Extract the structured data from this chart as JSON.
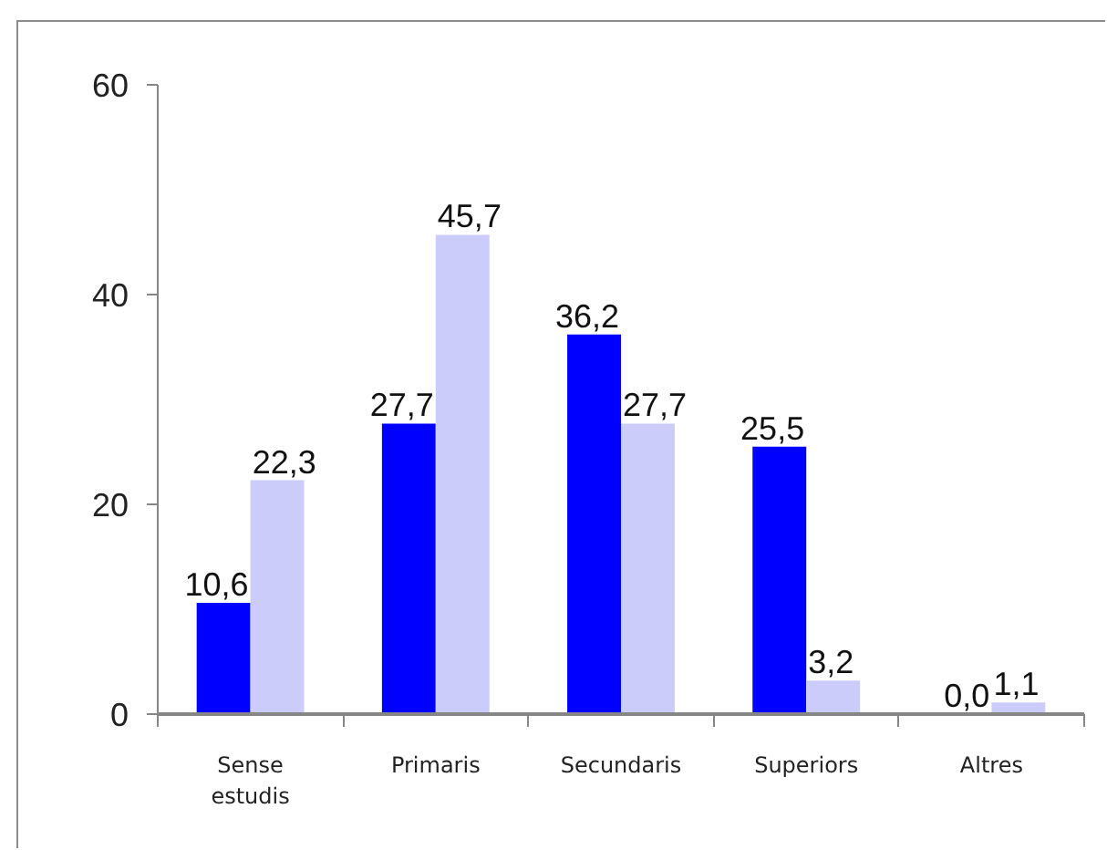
{
  "chart_data": {
    "type": "bar",
    "categories": [
      "Sense estudis",
      "Primaris",
      "Secundaris",
      "Superiors",
      "Altres"
    ],
    "series": [
      {
        "color": "#0000ff",
        "values": [
          10.6,
          27.7,
          36.2,
          25.5,
          0.0
        ],
        "value_labels": [
          "10,6",
          "27,7",
          "36,2",
          "25,5",
          "0,0"
        ]
      },
      {
        "color": "#ccccfb",
        "values": [
          22.3,
          45.7,
          27.7,
          3.2,
          1.1
        ],
        "value_labels": [
          "22,3",
          "45,7",
          "27,7",
          "3,2",
          "1,1"
        ]
      }
    ],
    "ylim": [
      0,
      60
    ],
    "yticks": [
      0,
      20,
      40,
      60
    ]
  }
}
